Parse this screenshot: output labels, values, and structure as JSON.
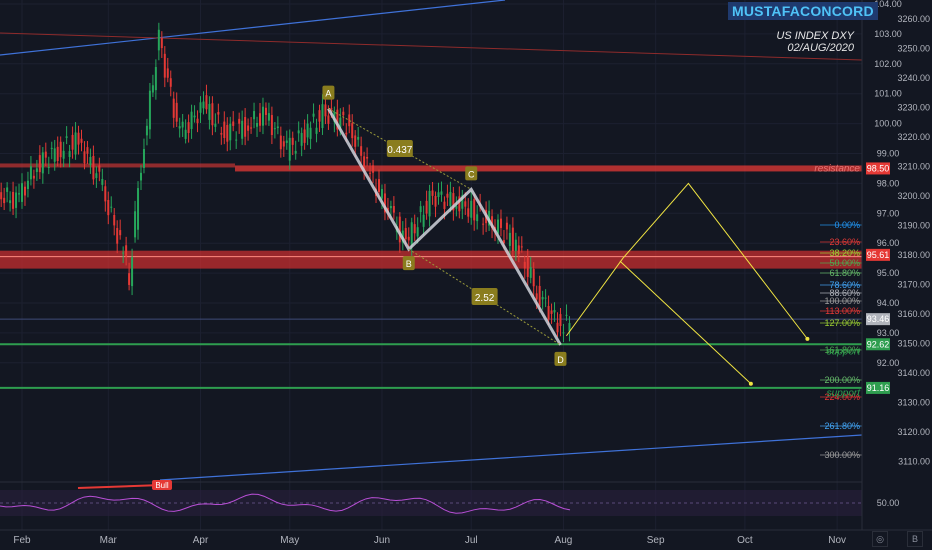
{
  "watermark": "MUSTAFACONCORD",
  "info": {
    "line1": "US INDEX DXY",
    "line2": "02/AUG/2020"
  },
  "axes": {
    "dxy_ticks": [
      "104.00",
      "103.00",
      "102.00",
      "101.00",
      "100.00",
      "99.00",
      "98.00",
      "97.00",
      "96.00",
      "95.00",
      "94.00",
      "93.00",
      "92.00"
    ],
    "alt_ticks": [
      "3260.00",
      "3250.00",
      "3240.00",
      "3230.00",
      "3220.00",
      "3210.00",
      "3200.00",
      "3190.00",
      "3180.00",
      "3170.00",
      "3160.00",
      "3150.00",
      "3140.00",
      "3130.00",
      "3120.00",
      "3110.00"
    ],
    "months": [
      "Feb",
      "Mar",
      "Apr",
      "May",
      "Jun",
      "Jul",
      "Aug",
      "Sep",
      "Oct",
      "Nov"
    ],
    "rsi_tick": "50.00"
  },
  "price_tags": [
    {
      "label": "98.50",
      "color": "#e53935"
    },
    {
      "label": "95.61",
      "color": "#e53935"
    },
    {
      "label": "93.46",
      "color": "#b0b3bb"
    },
    {
      "label": "92.62",
      "color": "#2e9e4f"
    },
    {
      "label": "91.16",
      "color": "#2e9e4f"
    }
  ],
  "zone_labels": {
    "resistance": "resistance",
    "support1": "support",
    "support2": "support"
  },
  "fib_levels": [
    {
      "label": "0.00%",
      "color": "#2196f3"
    },
    {
      "label": "23.60%",
      "color": "#e53935"
    },
    {
      "label": "38.20%",
      "color": "#9acd32"
    },
    {
      "label": "50.00%",
      "color": "#4caf50"
    },
    {
      "label": "61.80%",
      "color": "#66bb6a"
    },
    {
      "label": "78.60%",
      "color": "#42a5f5"
    },
    {
      "label": "88.60%",
      "color": "#b0b3bb"
    },
    {
      "label": "100.00%",
      "color": "#9e9e9e"
    },
    {
      "label": "113.00%",
      "color": "#e53935"
    },
    {
      "label": "127.00%",
      "color": "#9acd32"
    },
    {
      "label": "161.80%",
      "color": "#4caf50"
    },
    {
      "label": "200.00%",
      "color": "#66bb6a"
    },
    {
      "label": "224.00%",
      "color": "#e53935"
    },
    {
      "label": "261.80%",
      "color": "#42a5f5"
    },
    {
      "label": "300.00%",
      "color": "#9e9e9e"
    }
  ],
  "ratios": {
    "r1": "0.437",
    "r2": "2.52"
  },
  "points": {
    "A": "A",
    "B": "B",
    "C": "C",
    "D": "D"
  },
  "div_label": "Bull",
  "corner_buttons": {
    "log": "◎",
    "auto": "B"
  },
  "colors": {
    "background": "#131722",
    "up": "#26a65b",
    "down": "#e53935",
    "pattern": "#d1d4dc",
    "projection": "#f0e442",
    "trend": "#3f72d9",
    "rsi": "#b84fd6"
  },
  "chart_data": {
    "type": "candlestick",
    "symbol": "US INDEX DXY",
    "x_range": [
      "2020-01-20",
      "2020-11-15"
    ],
    "ylim": [
      91.0,
      104.2
    ],
    "swing_points": [
      {
        "label": "A",
        "date": "2020-05-14",
        "value": 100.5
      },
      {
        "label": "B",
        "date": "2020-06-10",
        "value": 95.8
      },
      {
        "label": "C",
        "date": "2020-07-01",
        "value": 97.8
      },
      {
        "label": "D",
        "date": "2020-07-31",
        "value": 92.6
      }
    ],
    "ratios": [
      0.437,
      2.52
    ],
    "horizontal_levels": [
      98.5,
      95.61,
      93.46,
      92.62,
      91.16
    ],
    "zones": [
      {
        "name": "resistance",
        "from": 98.4,
        "to": 98.6
      },
      {
        "name": "support",
        "from": 95.15,
        "to": 95.75
      }
    ],
    "projections": [
      {
        "name": "up-path",
        "points": [
          [
            "2020-08-02",
            92.9
          ],
          [
            "2020-08-21",
            95.5
          ],
          [
            "2020-09-12",
            98.0
          ],
          [
            "2020-10-22",
            92.8
          ]
        ]
      },
      {
        "name": "down-path",
        "points": [
          [
            "2020-08-20",
            95.4
          ],
          [
            "2020-10-03",
            91.3
          ]
        ]
      }
    ],
    "fib_levels_pct": [
      0,
      23.6,
      38.2,
      50,
      61.8,
      78.6,
      88.6,
      100,
      113,
      127,
      161.8,
      200,
      224,
      261.8,
      300
    ],
    "ohlc_approx": [
      [
        "2020-01-24",
        97.7
      ],
      [
        "2020-01-31",
        97.4
      ],
      [
        "2020-02-07",
        98.6
      ],
      [
        "2020-02-14",
        99.1
      ],
      [
        "2020-02-21",
        99.4
      ],
      [
        "2020-02-28",
        98.1
      ],
      [
        "2020-03-06",
        96.0
      ],
      [
        "2020-03-09",
        94.9
      ],
      [
        "2020-03-13",
        98.7
      ],
      [
        "2020-03-19",
        102.8
      ],
      [
        "2020-03-26",
        99.6
      ],
      [
        "2020-04-03",
        100.6
      ],
      [
        "2020-04-10",
        99.7
      ],
      [
        "2020-04-17",
        99.9
      ],
      [
        "2020-04-24",
        100.3
      ],
      [
        "2020-05-01",
        99.1
      ],
      [
        "2020-05-08",
        99.8
      ],
      [
        "2020-05-14",
        100.4
      ],
      [
        "2020-05-22",
        99.9
      ],
      [
        "2020-05-29",
        98.3
      ],
      [
        "2020-06-05",
        96.9
      ],
      [
        "2020-06-10",
        96.0
      ],
      [
        "2020-06-19",
        97.6
      ],
      [
        "2020-06-26",
        97.4
      ],
      [
        "2020-07-01",
        97.2
      ],
      [
        "2020-07-10",
        96.6
      ],
      [
        "2020-07-17",
        96.0
      ],
      [
        "2020-07-24",
        94.4
      ],
      [
        "2020-07-31",
        93.3
      ]
    ]
  }
}
